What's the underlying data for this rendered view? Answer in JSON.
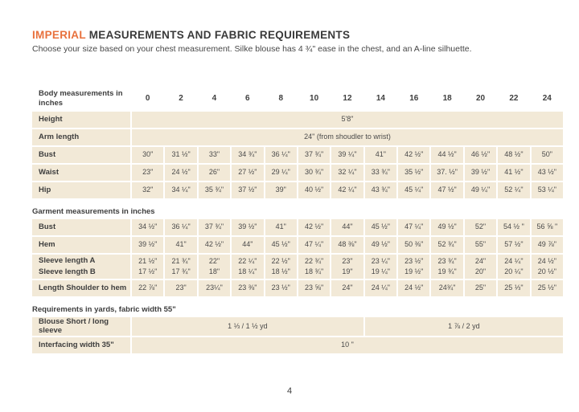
{
  "page": {
    "title_accent": "IMPERIAL",
    "title_rest": " MEASUREMENTS AND FABRIC REQUIREMENTS",
    "subtitle": "Choose your size based on your chest measurement. Silke blouse has 4 ¾\" ease in the chest, and an A-line silhuette.",
    "page_number": "4"
  },
  "table": {
    "rows": [
      {
        "kind": "header",
        "label": "Body measurements in inches",
        "cells": [
          "0",
          "2",
          "4",
          "6",
          "8",
          "10",
          "12",
          "14",
          "16",
          "18",
          "20",
          "22",
          "24"
        ]
      },
      {
        "kind": "row",
        "label": "Height",
        "merge": [
          {
            "span": 13,
            "text": "5'8\""
          }
        ]
      },
      {
        "kind": "row",
        "label": "Arm length",
        "merge": [
          {
            "span": 13,
            "text": "24\" (from shoudler to wrist)"
          }
        ]
      },
      {
        "kind": "row",
        "label": "Bust",
        "cells": [
          "30\"",
          "31 ½\"",
          "33\"",
          "34 ¾\"",
          "36 ¼\"",
          "37 ¾\"",
          "39 ¼\"",
          "41\"",
          "42 ½\"",
          "44 ½\"",
          "46 ½\"",
          "48 ½\"",
          "50\""
        ]
      },
      {
        "kind": "row",
        "label": "Waist",
        "cells": [
          "23\"",
          "24 ½\"",
          "26\"",
          "27 ½\"",
          "29 ¼\"",
          "30 ¾\"",
          "32 ¼\"",
          "33 ¾\"",
          "35 ½\"",
          "37. ½\"",
          "39 ½\"",
          "41 ½\"",
          "43 ½\""
        ]
      },
      {
        "kind": "row",
        "label": "Hip",
        "cells": [
          "32\"",
          "34 ¼\"",
          "35 ¾\"",
          "37 ½\"",
          "39\"",
          "40 ½\"",
          "42 ¼\"",
          "43 ¾\"",
          "45 ¼\"",
          "47 ½\"",
          "49 ¼\"",
          "52 ¼\"",
          "53 ¼\""
        ]
      },
      {
        "kind": "section",
        "label": "Garment measurements in inches"
      },
      {
        "kind": "row",
        "label": "Bust",
        "cells": [
          "34 ½\"",
          "36 ¼\"",
          "37 ¾\"",
          "39 ½\"",
          "41\"",
          "42 ½\"",
          "44\"",
          "45 ½\"",
          "47 ¼\"",
          "49 ½\"",
          "52\"",
          "54 ½ \"",
          "56 ⅝ \""
        ]
      },
      {
        "kind": "row",
        "label": "Hem",
        "cells": [
          "39 ½\"",
          "41\"",
          "42 ½\"",
          "44\"",
          "45 ½\"",
          "47 ¼\"",
          "48 ⅜\"",
          "49 ½\"",
          "50 ⅜\"",
          "52 ¾\"",
          "55\"",
          "57 ½\"",
          "49 ⅞\""
        ]
      },
      {
        "kind": "row2",
        "labels": [
          "Sleeve length  A",
          "Sleeve length B"
        ],
        "cellsA": [
          "21 ½\"",
          "21 ¾\"",
          "22\"",
          "22 ¼\"",
          "22 ½\"",
          "22 ¾\"",
          "23\"",
          "23 ¼\"",
          "23 ½\"",
          "23 ¾\"",
          "24\"",
          "24 ¼\"",
          "24 ½\""
        ],
        "cellsB": [
          "17 ½\"",
          "17 ¾\"",
          "18\"",
          "18 ¼\"",
          "18 ½\"",
          "18 ¾\"",
          "19\"",
          "19 ¼\"",
          "19 ½\"",
          "19 ¾\"",
          "20\"",
          "20 ¼\"",
          "20 ½\""
        ]
      },
      {
        "kind": "row",
        "label": "Length Shoulder to hem",
        "cells": [
          "22 ⅞\"",
          "23\"",
          "23¼\"",
          "23 ⅜\"",
          "23 ½\"",
          "23 ⅝\"",
          "24\"",
          "24 ¼\"",
          "24 ½\"",
          "24¾\"",
          "25\"",
          "25 ⅓\"",
          "25 ½\""
        ]
      },
      {
        "kind": "section",
        "label": "Requirements in yards, fabric width 55\""
      },
      {
        "kind": "row",
        "label": "Blouse Short / long sleeve",
        "merge": [
          {
            "span": 7,
            "text": "1 ⅓ / 1 ½ yd"
          },
          {
            "span": 6,
            "text": "1 ⅞ / 2  yd"
          }
        ]
      },
      {
        "kind": "row",
        "label": "Interfacing width 35\"",
        "merge": [
          {
            "span": 13,
            "text": "10 \""
          }
        ]
      }
    ]
  },
  "colors": {
    "accent_orange": "#e8713d",
    "cell_beige": "#f2e9d7",
    "text_dark": "#3e3e3e"
  }
}
